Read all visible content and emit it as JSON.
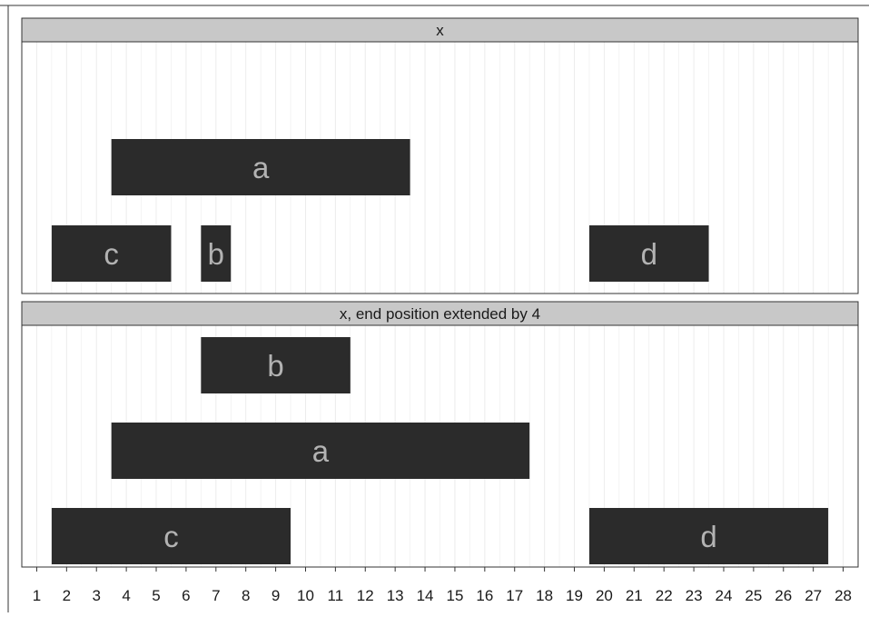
{
  "chart_data": {
    "type": "bar",
    "x_axis": {
      "range": [
        0.5,
        28.5
      ],
      "ticks": [
        "1",
        "2",
        "3",
        "4",
        "5",
        "6",
        "7",
        "8",
        "9",
        "10",
        "11",
        "12",
        "13",
        "14",
        "15",
        "16",
        "17",
        "18",
        "19",
        "20",
        "21",
        "22",
        "23",
        "24",
        "25",
        "26",
        "27",
        "28"
      ],
      "tick_values": [
        1,
        2,
        3,
        4,
        5,
        6,
        7,
        8,
        9,
        10,
        11,
        12,
        13,
        14,
        15,
        16,
        17,
        18,
        19,
        20,
        21,
        22,
        23,
        24,
        25,
        26,
        27,
        28
      ]
    },
    "grid": true,
    "panels": [
      {
        "title": "x",
        "intervals": [
          {
            "label": "a",
            "start": 4,
            "end": 13,
            "level": 2
          },
          {
            "label": "c",
            "start": 2,
            "end": 5,
            "level": 1
          },
          {
            "label": "b",
            "start": 7,
            "end": 7,
            "level": 1
          },
          {
            "label": "d",
            "start": 20,
            "end": 23,
            "level": 1
          }
        ]
      },
      {
        "title": "x, end position extended by 4",
        "intervals": [
          {
            "label": "b",
            "start": 7,
            "end": 11,
            "level": 3
          },
          {
            "label": "a",
            "start": 4,
            "end": 17,
            "level": 2
          },
          {
            "label": "c",
            "start": 2,
            "end": 9,
            "level": 1
          },
          {
            "label": "d",
            "start": 20,
            "end": 27,
            "level": 1
          }
        ]
      }
    ]
  },
  "colors": {
    "bar_fill": "#2b2b2b",
    "bar_label": "#b3b3b3",
    "strip_fill": "#c8c8c8",
    "grid_line": "#ececec",
    "panel_border": "#333333",
    "axis_text": "#1a1a1a"
  }
}
